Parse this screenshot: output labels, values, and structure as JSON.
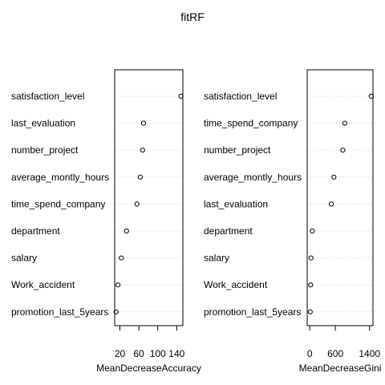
{
  "title": "fitRF",
  "chart_data": [
    {
      "type": "scatter",
      "style": "dotchart",
      "xlabel": "MeanDecreaseAccuracy",
      "xlim": [
        9,
        153
      ],
      "xticks": [
        20,
        60,
        100,
        140
      ],
      "xtick_labels": [
        "20",
        "60",
        "100",
        "140"
      ],
      "grid": "dotted-horizontal",
      "categories": [
        "satisfaction_level",
        "last_evaluation",
        "number_project",
        "average_montly_hours",
        "time_spend_company",
        "department",
        "salary",
        "Work_accident",
        "promotion_last_5years"
      ],
      "values": [
        149,
        70,
        68,
        63,
        56,
        34,
        23,
        16,
        12
      ]
    },
    {
      "type": "scatter",
      "style": "dotchart",
      "xlabel": "MeanDecreaseGini",
      "xlim": [
        -60,
        1480
      ],
      "xticks": [
        0,
        600,
        1400
      ],
      "xtick_labels": [
        "0",
        "600",
        "1400"
      ],
      "grid": "dotted-horizontal",
      "categories": [
        "satisfaction_level",
        "time_spend_company",
        "number_project",
        "average_montly_hours",
        "last_evaluation",
        "department",
        "salary",
        "Work_accident",
        "promotion_last_5years"
      ],
      "values": [
        1440,
        820,
        775,
        565,
        505,
        60,
        30,
        20,
        12
      ]
    }
  ]
}
